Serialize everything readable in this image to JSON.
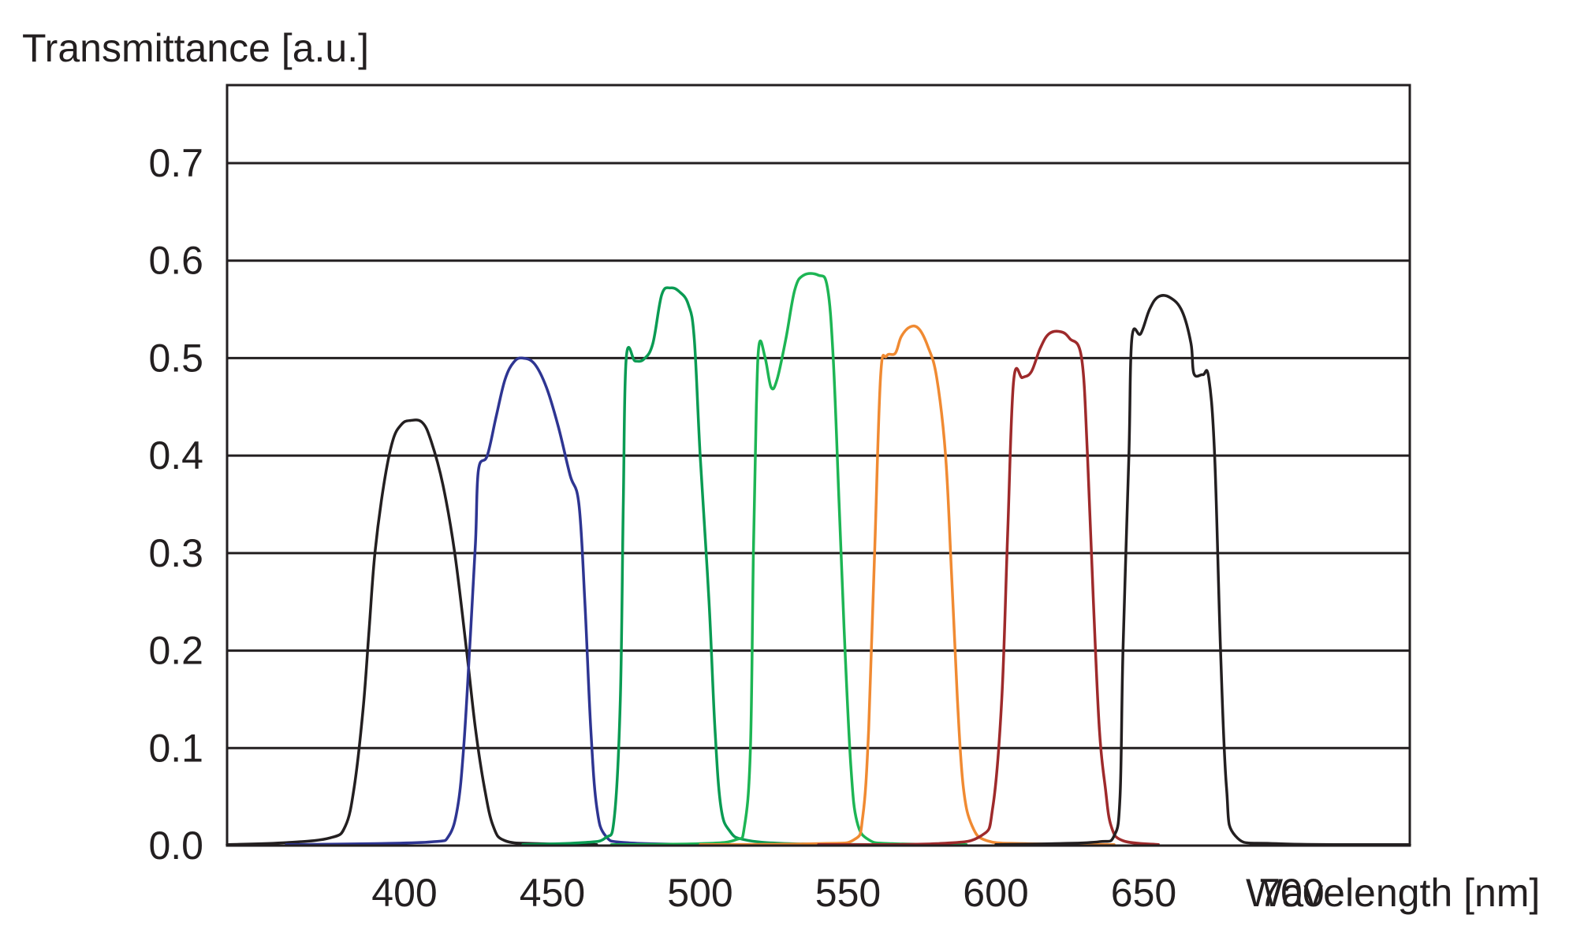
{
  "chart_data": {
    "type": "line",
    "title": "",
    "xlabel": "Wavelength [nm]",
    "ylabel": "Transmittance [a.u.]",
    "xlim": [
      340,
      740
    ],
    "ylim": [
      0,
      0.78
    ],
    "x_ticks": [
      {
        "value": 400,
        "label": "400"
      },
      {
        "value": 450,
        "label": "450"
      },
      {
        "value": 500,
        "label": "500"
      },
      {
        "value": 550,
        "label": "550"
      },
      {
        "value": 600,
        "label": "600"
      },
      {
        "value": 650,
        "label": "650"
      },
      {
        "value": 700,
        "label": "700"
      }
    ],
    "y_ticks": [
      {
        "value": 0.0,
        "label": "0.0"
      },
      {
        "value": 0.1,
        "label": "0.1"
      },
      {
        "value": 0.2,
        "label": "0.2"
      },
      {
        "value": 0.3,
        "label": "0.3"
      },
      {
        "value": 0.4,
        "label": "0.4"
      },
      {
        "value": 0.5,
        "label": "0.5"
      },
      {
        "value": 0.6,
        "label": "0.6"
      },
      {
        "value": 0.7,
        "label": "0.7"
      }
    ],
    "grid": {
      "horizontal": true,
      "vertical": false
    },
    "legend": "none",
    "series": [
      {
        "color": "#231f20",
        "points": [
          [
            340,
            0.001
          ],
          [
            360,
            0.003
          ],
          [
            375,
            0.008
          ],
          [
            380,
            0.02
          ],
          [
            383,
            0.06
          ],
          [
            386,
            0.14
          ],
          [
            388,
            0.22
          ],
          [
            390,
            0.3
          ],
          [
            393,
            0.37
          ],
          [
            396,
            0.415
          ],
          [
            399,
            0.432
          ],
          [
            402,
            0.436
          ],
          [
            406,
            0.434
          ],
          [
            409,
            0.415
          ],
          [
            413,
            0.37
          ],
          [
            417,
            0.3
          ],
          [
            421,
            0.2
          ],
          [
            424,
            0.12
          ],
          [
            427,
            0.06
          ],
          [
            430,
            0.02
          ],
          [
            434,
            0.005
          ],
          [
            445,
            0.002
          ],
          [
            465,
            0.001
          ]
        ]
      },
      {
        "color": "#2e3592",
        "points": [
          [
            360,
            0.001
          ],
          [
            390,
            0.002
          ],
          [
            410,
            0.004
          ],
          [
            415,
            0.01
          ],
          [
            418,
            0.04
          ],
          [
            420,
            0.1
          ],
          [
            422,
            0.2
          ],
          [
            424,
            0.31
          ],
          [
            425,
            0.385
          ],
          [
            428,
            0.4
          ],
          [
            431,
            0.44
          ],
          [
            434,
            0.478
          ],
          [
            437,
            0.496
          ],
          [
            440,
            0.5
          ],
          [
            444,
            0.494
          ],
          [
            448,
            0.47
          ],
          [
            452,
            0.43
          ],
          [
            456,
            0.38
          ],
          [
            459,
            0.35
          ],
          [
            461,
            0.25
          ],
          [
            463,
            0.12
          ],
          [
            465,
            0.04
          ],
          [
            468,
            0.01
          ],
          [
            475,
            0.003
          ],
          [
            500,
            0.001
          ]
        ]
      },
      {
        "color": "#0a9b53",
        "points": [
          [
            440,
            0.001
          ],
          [
            460,
            0.003
          ],
          [
            468,
            0.008
          ],
          [
            471,
            0.03
          ],
          [
            473,
            0.15
          ],
          [
            474,
            0.35
          ],
          [
            475,
            0.5
          ],
          [
            478,
            0.497
          ],
          [
            481,
            0.499
          ],
          [
            484,
            0.515
          ],
          [
            487,
            0.565
          ],
          [
            490,
            0.572
          ],
          [
            493,
            0.568
          ],
          [
            496,
            0.555
          ],
          [
            498,
            0.52
          ],
          [
            500,
            0.4
          ],
          [
            503,
            0.25
          ],
          [
            505,
            0.12
          ],
          [
            507,
            0.04
          ],
          [
            510,
            0.015
          ],
          [
            515,
            0.006
          ],
          [
            530,
            0.002
          ],
          [
            560,
            0.001
          ]
        ]
      },
      {
        "color": "#1db554",
        "points": [
          [
            470,
            0.001
          ],
          [
            500,
            0.002
          ],
          [
            512,
            0.006
          ],
          [
            515,
            0.02
          ],
          [
            517,
            0.1
          ],
          [
            518,
            0.3
          ],
          [
            519,
            0.45
          ],
          [
            520,
            0.515
          ],
          [
            522,
            0.5
          ],
          [
            524,
            0.47
          ],
          [
            526,
            0.478
          ],
          [
            529,
            0.52
          ],
          [
            532,
            0.57
          ],
          [
            535,
            0.585
          ],
          [
            540,
            0.585
          ],
          [
            543,
            0.573
          ],
          [
            545,
            0.5
          ],
          [
            547,
            0.35
          ],
          [
            549,
            0.2
          ],
          [
            551,
            0.08
          ],
          [
            553,
            0.025
          ],
          [
            557,
            0.006
          ],
          [
            565,
            0.002
          ],
          [
            590,
            0.001
          ]
        ]
      },
      {
        "color": "#f08a32",
        "points": [
          [
            500,
            0.001
          ],
          [
            540,
            0.002
          ],
          [
            552,
            0.006
          ],
          [
            555,
            0.03
          ],
          [
            557,
            0.12
          ],
          [
            559,
            0.3
          ],
          [
            561,
            0.48
          ],
          [
            563,
            0.502
          ],
          [
            566,
            0.505
          ],
          [
            568,
            0.522
          ],
          [
            571,
            0.532
          ],
          [
            574,
            0.53
          ],
          [
            577,
            0.512
          ],
          [
            580,
            0.48
          ],
          [
            583,
            0.4
          ],
          [
            585,
            0.28
          ],
          [
            587,
            0.15
          ],
          [
            589,
            0.06
          ],
          [
            592,
            0.02
          ],
          [
            597,
            0.005
          ],
          [
            610,
            0.002
          ],
          [
            640,
            0.001
          ]
        ]
      },
      {
        "color": "#9e2a2b",
        "points": [
          [
            540,
            0.001
          ],
          [
            580,
            0.002
          ],
          [
            595,
            0.01
          ],
          [
            599,
            0.04
          ],
          [
            602,
            0.15
          ],
          [
            604,
            0.32
          ],
          [
            606,
            0.476
          ],
          [
            609,
            0.48
          ],
          [
            612,
            0.486
          ],
          [
            615,
            0.51
          ],
          [
            618,
            0.525
          ],
          [
            622,
            0.527
          ],
          [
            625,
            0.52
          ],
          [
            629,
            0.5
          ],
          [
            631,
            0.4
          ],
          [
            633,
            0.25
          ],
          [
            635,
            0.12
          ],
          [
            637,
            0.06
          ],
          [
            639,
            0.02
          ],
          [
            643,
            0.005
          ],
          [
            655,
            0.001
          ]
        ]
      },
      {
        "color": "#231f20",
        "points": [
          [
            600,
            0.001
          ],
          [
            620,
            0.002
          ],
          [
            635,
            0.004
          ],
          [
            640,
            0.01
          ],
          [
            642,
            0.05
          ],
          [
            643,
            0.2
          ],
          [
            645,
            0.4
          ],
          [
            646,
            0.52
          ],
          [
            649,
            0.525
          ],
          [
            652,
            0.55
          ],
          [
            655,
            0.563
          ],
          [
            659,
            0.562
          ],
          [
            663,
            0.548
          ],
          [
            666,
            0.515
          ],
          [
            667,
            0.484
          ],
          [
            670,
            0.483
          ],
          [
            672,
            0.48
          ],
          [
            674,
            0.4
          ],
          [
            676,
            0.2
          ],
          [
            678,
            0.06
          ],
          [
            681,
            0.01
          ],
          [
            695,
            0.002
          ],
          [
            740,
            0.001
          ]
        ]
      }
    ]
  }
}
